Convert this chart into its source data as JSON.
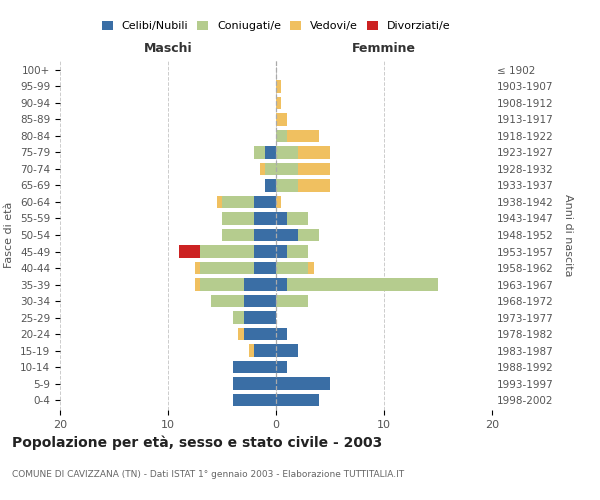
{
  "age_groups": [
    "100+",
    "95-99",
    "90-94",
    "85-89",
    "80-84",
    "75-79",
    "70-74",
    "65-69",
    "60-64",
    "55-59",
    "50-54",
    "45-49",
    "40-44",
    "35-39",
    "30-34",
    "25-29",
    "20-24",
    "15-19",
    "10-14",
    "5-9",
    "0-4"
  ],
  "birth_years": [
    "≤ 1902",
    "1903-1907",
    "1908-1912",
    "1913-1917",
    "1918-1922",
    "1923-1927",
    "1928-1932",
    "1933-1937",
    "1938-1942",
    "1943-1947",
    "1948-1952",
    "1953-1957",
    "1958-1962",
    "1963-1967",
    "1968-1972",
    "1973-1977",
    "1978-1982",
    "1983-1987",
    "1988-1992",
    "1993-1997",
    "1998-2002"
  ],
  "colors": {
    "celibi": "#3a6ea5",
    "coniugati": "#b5cc8e",
    "vedovi": "#f0c060",
    "divorziati": "#cc2222"
  },
  "maschi": {
    "celibi": [
      0,
      0,
      0,
      0,
      0,
      1,
      0,
      1,
      2,
      2,
      2,
      2,
      2,
      3,
      3,
      3,
      3,
      2,
      4,
      4,
      4
    ],
    "coniugati": [
      0,
      0,
      0,
      0,
      0,
      1,
      1,
      0,
      3,
      3,
      3,
      5,
      5,
      4,
      3,
      1,
      0,
      0,
      0,
      0,
      0
    ],
    "vedovi": [
      0,
      0,
      0,
      0,
      0,
      0,
      0.5,
      0,
      0.5,
      0,
      0,
      0,
      0.5,
      0.5,
      0,
      0,
      0.5,
      0.5,
      0,
      0,
      0
    ],
    "divorziati": [
      0,
      0,
      0,
      0,
      0,
      0,
      0,
      0,
      0,
      0,
      0,
      2,
      0,
      0,
      0,
      0,
      0,
      0,
      0,
      0,
      0
    ]
  },
  "femmine": {
    "celibi": [
      0,
      0,
      0,
      0,
      0,
      0,
      0,
      0,
      0,
      1,
      2,
      1,
      0,
      1,
      0,
      0,
      1,
      2,
      1,
      5,
      4
    ],
    "coniugati": [
      0,
      0,
      0,
      0,
      1,
      2,
      2,
      2,
      0,
      2,
      2,
      2,
      3,
      14,
      3,
      0,
      0,
      0,
      0,
      0,
      0
    ],
    "vedovi": [
      0,
      0.5,
      0.5,
      1,
      3,
      3,
      3,
      3,
      0.5,
      0,
      0,
      0,
      0.5,
      0,
      0,
      0,
      0,
      0,
      0,
      0,
      0
    ],
    "divorziati": [
      0,
      0,
      0,
      0,
      0,
      0,
      0,
      0,
      0,
      0,
      0,
      0,
      0,
      0,
      0,
      0,
      0,
      0,
      0,
      0,
      0
    ]
  },
  "title": "Popolazione per età, sesso e stato civile - 2003",
  "subtitle": "COMUNE DI CAVIZZANA (TN) - Dati ISTAT 1° gennaio 2003 - Elaborazione TUTTITALIA.IT",
  "xlabel_left": "Maschi",
  "xlabel_right": "Femmine",
  "ylabel_left": "Fasce di età",
  "ylabel_right": "Anni di nascita",
  "xlim": 20,
  "background_color": "#ffffff",
  "grid_color": "#cccccc",
  "legend_labels": [
    "Celibi/Nubili",
    "Coniugati/e",
    "Vedovi/e",
    "Divorziati/e"
  ]
}
